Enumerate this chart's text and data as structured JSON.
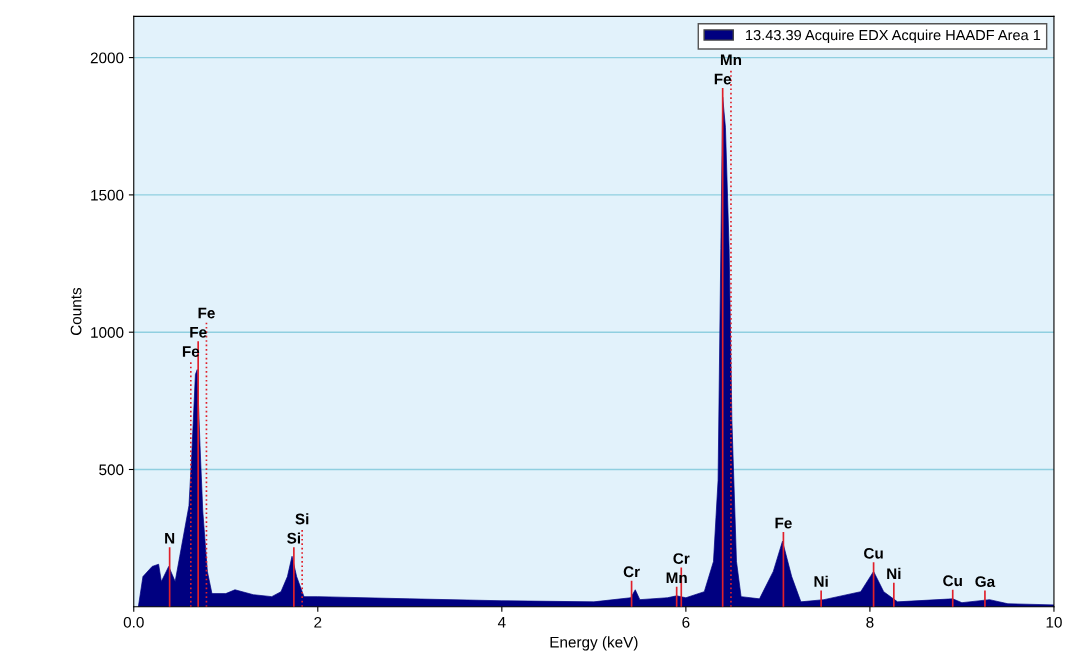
{
  "chart_data": {
    "type": "area",
    "xlabel": "Energy (keV)",
    "ylabel": "Counts",
    "xlim": [
      0,
      10
    ],
    "ylim": [
      0,
      2150
    ],
    "xticks": [
      {
        "value": 0,
        "label": "0.0"
      },
      2,
      4,
      6,
      8,
      10
    ],
    "yticks": [
      500,
      1000,
      1500,
      2000
    ],
    "grid": "y",
    "legend": "top right",
    "series": [
      {
        "name": "13.43.39 Acquire EDX Acquire HAADF Area 1",
        "color": "#000080",
        "x": [
          0.05,
          0.1,
          0.2,
          0.27,
          0.3,
          0.38,
          0.45,
          0.5,
          0.55,
          0.6,
          0.63,
          0.67,
          0.69,
          0.72,
          0.75,
          0.8,
          0.85,
          1.0,
          1.1,
          1.3,
          1.5,
          1.6,
          1.67,
          1.72,
          1.77,
          1.85,
          2.0,
          3.0,
          4.0,
          5.0,
          5.4,
          5.45,
          5.5,
          5.8,
          5.9,
          6.0,
          6.2,
          6.3,
          6.35,
          6.38,
          6.4,
          6.43,
          6.47,
          6.5,
          6.55,
          6.6,
          6.8,
          6.95,
          7.05,
          7.15,
          7.25,
          7.5,
          7.9,
          8.04,
          8.15,
          8.3,
          8.9,
          9.0,
          9.3,
          9.5,
          10.0
        ],
        "values": [
          0,
          110,
          147,
          155,
          92,
          147,
          92,
          184,
          276,
          368,
          551,
          846,
          864,
          588,
          349,
          129,
          48,
          48,
          62,
          44,
          37,
          55,
          110,
          184,
          110,
          37,
          37,
          29,
          22,
          18,
          33,
          62,
          26,
          33,
          40,
          33,
          55,
          165,
          460,
          1305,
          1856,
          1746,
          1305,
          680,
          165,
          37,
          29,
          129,
          239,
          110,
          18,
          26,
          55,
          129,
          55,
          18,
          29,
          15,
          26,
          11,
          7
        ]
      }
    ],
    "ref_lines": [
      {
        "axis": "x",
        "value": 0.39,
        "label": "N",
        "color": "#e0202a"
      },
      {
        "axis": "x",
        "value": 0.62,
        "label": "Fe",
        "color": "#e0202a",
        "line_style": "dotted"
      },
      {
        "axis": "x",
        "value": 0.7,
        "label": "Fe",
        "color": "#e0202a"
      },
      {
        "axis": "x",
        "value": 0.79,
        "label": "Fe",
        "color": "#e0202a",
        "line_style": "dotted"
      },
      {
        "axis": "x",
        "value": 1.74,
        "label": "Si",
        "color": "#e0202a"
      },
      {
        "axis": "x",
        "value": 1.83,
        "label": "Si",
        "color": "#e0202a",
        "line_style": "dotted"
      },
      {
        "axis": "x",
        "value": 5.41,
        "label": "Cr",
        "color": "#e0202a"
      },
      {
        "axis": "x",
        "value": 5.9,
        "label": "Mn",
        "color": "#e0202a"
      },
      {
        "axis": "x",
        "value": 5.95,
        "label": "Cr",
        "color": "#e0202a"
      },
      {
        "axis": "x",
        "value": 6.4,
        "label": "Fe",
        "color": "#e0202a"
      },
      {
        "axis": "x",
        "value": 6.49,
        "label": "Mn",
        "color": "#e0202a",
        "line_style": "dotted"
      },
      {
        "axis": "x",
        "value": 7.06,
        "label": "Fe",
        "color": "#e0202a"
      },
      {
        "axis": "x",
        "value": 7.47,
        "label": "Ni",
        "color": "#e0202a"
      },
      {
        "axis": "x",
        "value": 8.04,
        "label": "Cu",
        "color": "#e0202a"
      },
      {
        "axis": "x",
        "value": 8.26,
        "label": "Ni",
        "color": "#e0202a"
      },
      {
        "axis": "x",
        "value": 8.9,
        "label": "Cu",
        "color": "#e0202a"
      },
      {
        "axis": "x",
        "value": 9.25,
        "label": "Ga",
        "color": "#e0202a"
      }
    ]
  }
}
